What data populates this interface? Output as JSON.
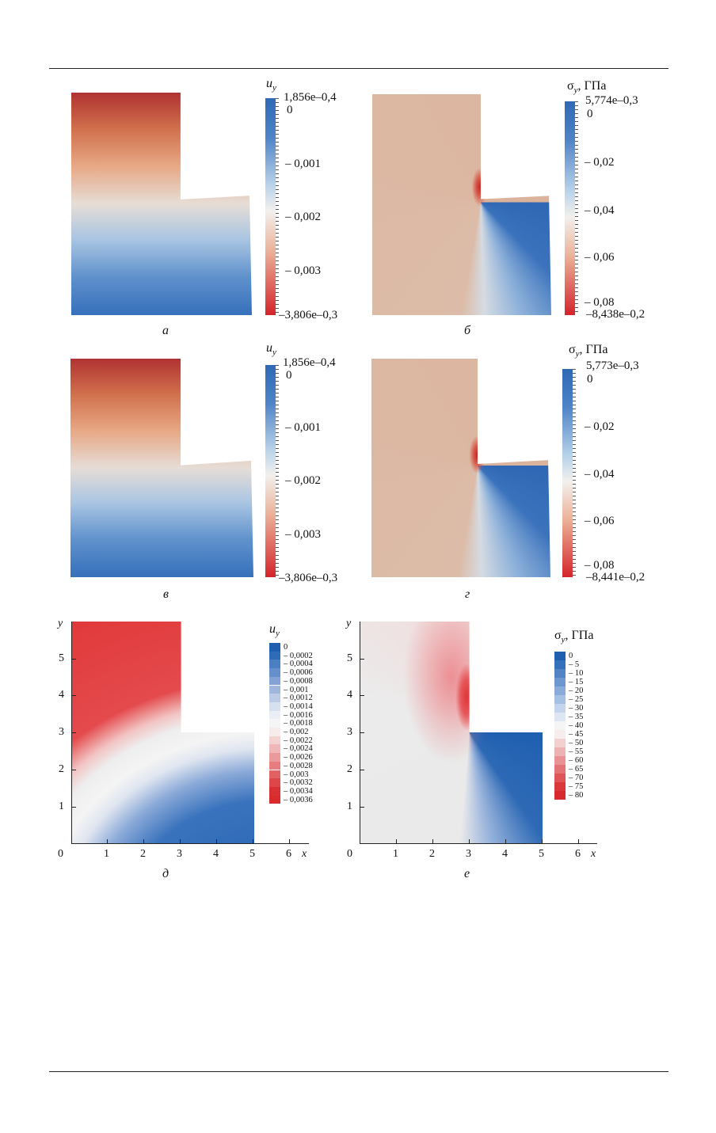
{
  "figure": {
    "panels": [
      {
        "id": "a",
        "caption": "а",
        "quantity": "u_y",
        "title_main": "u",
        "title_sub": "y",
        "title_unit": "",
        "colorbar": {
          "max_label": "1,856e–0,4",
          "min_label": "–3,806e–0,3",
          "tick_labels": [
            "0",
            "– 0,001",
            "– 0,002",
            "– 0,003"
          ],
          "colors": [
            "#2f68b5",
            "#b9d3ea",
            "#f2f0ed",
            "#ecb39a",
            "#d4242b"
          ]
        }
      },
      {
        "id": "b",
        "caption": "б",
        "quantity": "sigma_y",
        "title_main": "σ",
        "title_sub": "y",
        "title_unit": ", ГПа",
        "colorbar": {
          "max_label": "5,774e–0,3",
          "min_label": "–8,438e–0,2",
          "tick_labels": [
            "0",
            "– 0,02",
            "– 0,04",
            "– 0,06",
            "– 0,08"
          ],
          "colors": [
            "#2f68b5",
            "#b9d3ea",
            "#f2f0ed",
            "#ecb39a",
            "#d4242b"
          ]
        }
      },
      {
        "id": "v",
        "caption": "в",
        "quantity": "u_y",
        "title_main": "u",
        "title_sub": "y",
        "title_unit": "",
        "colorbar": {
          "max_label": "1,856e–0,4",
          "min_label": "–3,806e–0,3",
          "tick_labels": [
            "0",
            "– 0,001",
            "– 0,002",
            "– 0,003"
          ],
          "colors": [
            "#2f68b5",
            "#b9d3ea",
            "#f2f0ed",
            "#ecb39a",
            "#d4242b"
          ]
        }
      },
      {
        "id": "g",
        "caption": "г",
        "quantity": "sigma_y",
        "title_main": "σ",
        "title_sub": "y",
        "title_unit": ", ГПа",
        "colorbar": {
          "max_label": "5,773e–0,3",
          "min_label": "–8,441e–0,2",
          "tick_labels": [
            "0",
            "– 0,02",
            "– 0,04",
            "– 0,06",
            "– 0,08"
          ],
          "colors": [
            "#2f68b5",
            "#b9d3ea",
            "#f2f0ed",
            "#ecb39a",
            "#d4242b"
          ]
        }
      },
      {
        "id": "d",
        "caption": "д",
        "quantity": "u_y",
        "title_main": "u",
        "title_sub": "y",
        "title_unit": "",
        "x_ticks": [
          "0",
          "1",
          "2",
          "3",
          "4",
          "5",
          "6"
        ],
        "y_ticks": [
          "1",
          "2",
          "3",
          "4",
          "5"
        ],
        "x_label": "x",
        "y_label": "y",
        "legend_levels": [
          "0",
          "– 0,0002",
          "– 0,0004",
          "– 0,0006",
          "– 0,0008",
          "– 0,001",
          "– 0,0012",
          "– 0,0014",
          "– 0,0016",
          "– 0,0018",
          "– 0,002",
          "– 0,0022",
          "– 0,0024",
          "– 0,0026",
          "– 0,0028",
          "– 0,003",
          "– 0,0032",
          "– 0,0034",
          "– 0,0036"
        ],
        "legend_colors": [
          "#1f5fb0",
          "#2f6cb8",
          "#4a7fc2",
          "#6690cb",
          "#82a3d4",
          "#9fb7dd",
          "#bccbe6",
          "#d7e0ef",
          "#eaeef5",
          "#f5f5f5",
          "#f7ecec",
          "#f3d2d2",
          "#efb7b8",
          "#ea9a9b",
          "#e67d7f",
          "#e26264",
          "#de4749",
          "#db3033",
          "#d92a2c"
        ]
      },
      {
        "id": "e",
        "caption": "е",
        "quantity": "sigma_y",
        "title_main": "σ",
        "title_sub": "y",
        "title_unit": ", ГПа",
        "x_ticks": [
          "0",
          "1",
          "2",
          "3",
          "4",
          "5",
          "6"
        ],
        "y_ticks": [
          "1",
          "2",
          "3",
          "4",
          "5"
        ],
        "x_label": "x",
        "y_label": "y",
        "legend_levels": [
          "0",
          "– 5",
          "– 10",
          "– 15",
          "– 20",
          "– 25",
          "– 30",
          "– 35",
          "– 40",
          "– 45",
          "– 50",
          "– 55",
          "– 60",
          "– 65",
          "– 70",
          "– 75",
          "– 80"
        ],
        "legend_colors": [
          "#1f5fb0",
          "#3570ba",
          "#5084c5",
          "#6c97cf",
          "#89abd9",
          "#a6c0e3",
          "#c3d4ec",
          "#dfe6f3",
          "#f5f5f5",
          "#f7eded",
          "#f2d0d0",
          "#edb2b3",
          "#e89295",
          "#e47377",
          "#df5458",
          "#db383c",
          "#d82a2e"
        ]
      }
    ]
  }
}
